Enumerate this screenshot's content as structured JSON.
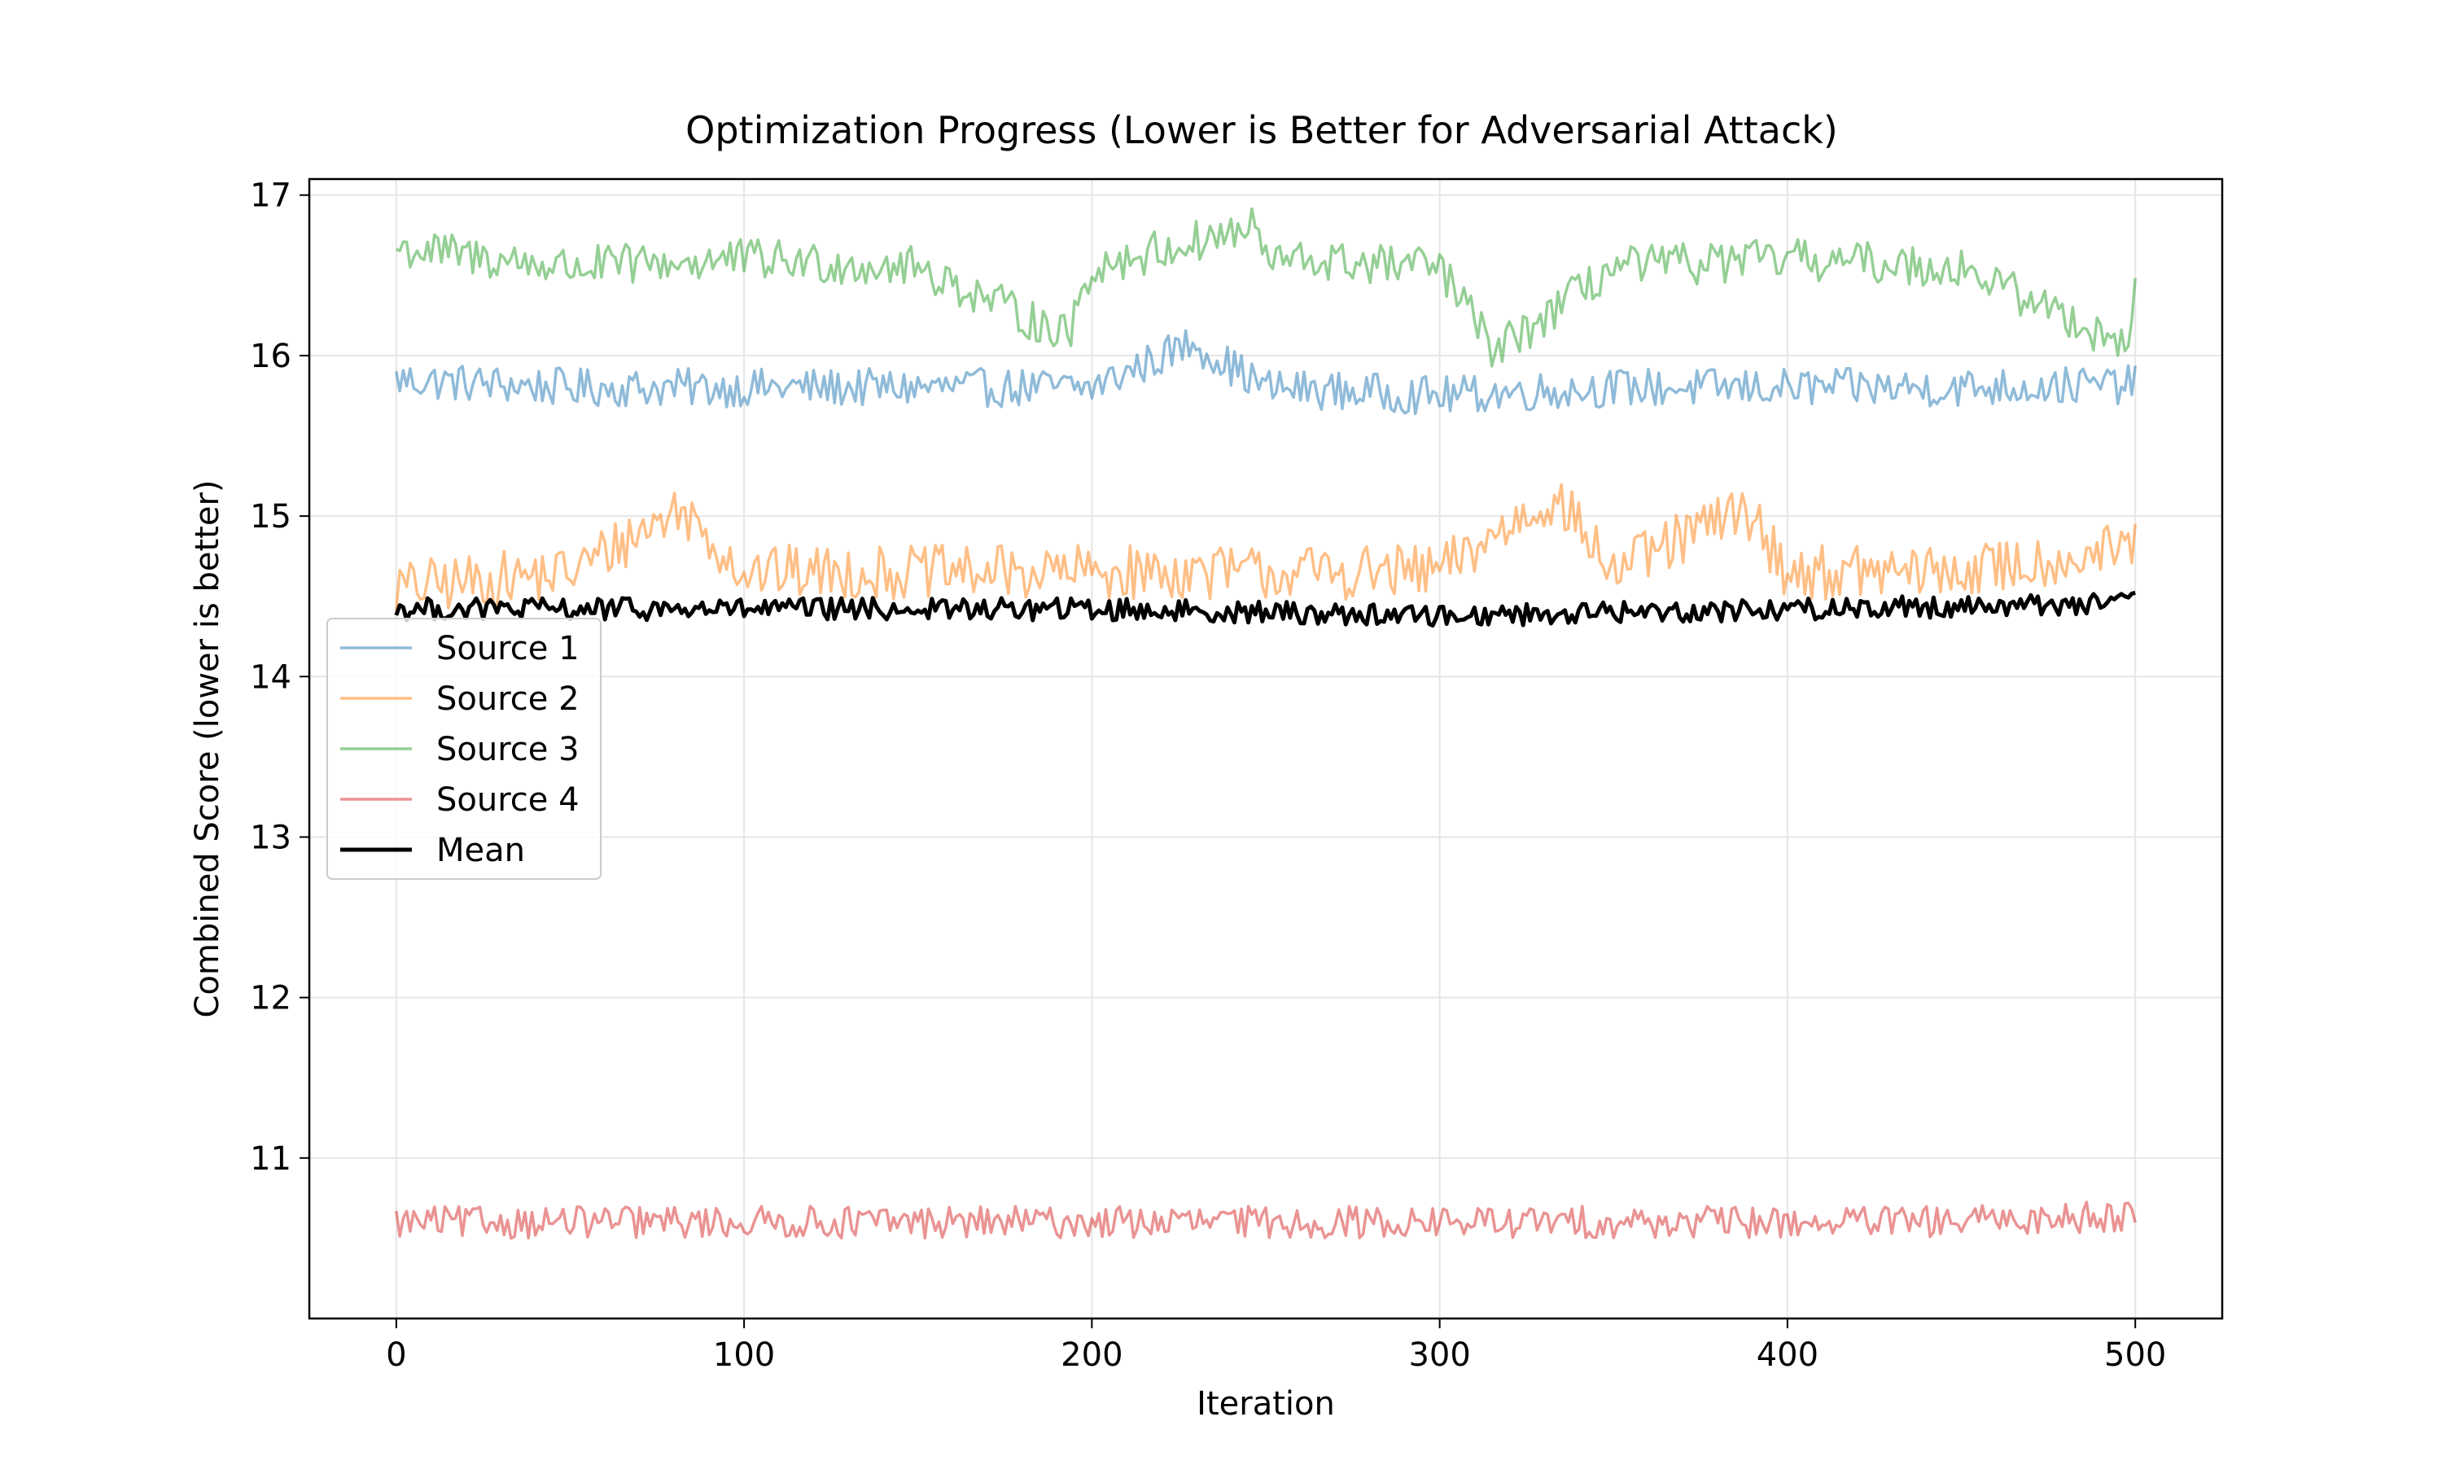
{
  "chart_data": {
    "type": "line",
    "title": "Optimization Progress (Lower is Better for Adversarial Attack)",
    "xlabel": "Iteration",
    "ylabel": "Combined Score (lower is better)",
    "xlim": [
      -25,
      525
    ],
    "ylim": [
      10.0,
      17.1
    ],
    "xticks": [
      0,
      100,
      200,
      300,
      400,
      500
    ],
    "yticks": [
      11,
      12,
      13,
      14,
      15,
      16,
      17
    ],
    "grid": true,
    "legend_position": "center-left",
    "legend": [
      {
        "label": "Source 1",
        "color": "#1f77b4",
        "alpha": 0.5,
        "width": 3.5
      },
      {
        "label": "Source 2",
        "color": "#ff7f0e",
        "alpha": 0.5,
        "width": 3.5
      },
      {
        "label": "Source 3",
        "color": "#2ca02c",
        "alpha": 0.5,
        "width": 3.5
      },
      {
        "label": "Source 4",
        "color": "#d62728",
        "alpha": 0.5,
        "width": 3.5
      },
      {
        "label": "Mean",
        "color": "#000000",
        "alpha": 1.0,
        "width": 5
      }
    ],
    "x": {
      "start": 0,
      "end": 500,
      "step": 1
    },
    "series": [
      {
        "name": "Source 1",
        "description": "Noisy series fluctuating about 15.8, range ~15.55-16.1",
        "keypoints": [
          [
            0,
            15.85
          ],
          [
            50,
            15.8
          ],
          [
            100,
            15.8
          ],
          [
            150,
            15.8
          ],
          [
            200,
            15.8
          ],
          [
            229,
            16.08
          ],
          [
            250,
            15.8
          ],
          [
            300,
            15.75
          ],
          [
            350,
            15.8
          ],
          [
            400,
            15.8
          ],
          [
            450,
            15.8
          ],
          [
            500,
            15.82
          ]
        ],
        "mean": 15.8,
        "amplitude": 0.12
      },
      {
        "name": "Source 2",
        "description": "Noisy series fluctuating about 14.65, range ~14.35-15.15",
        "keypoints": [
          [
            0,
            14.55
          ],
          [
            50,
            14.65
          ],
          [
            82,
            15.05
          ],
          [
            100,
            14.65
          ],
          [
            150,
            14.65
          ],
          [
            200,
            14.65
          ],
          [
            250,
            14.65
          ],
          [
            300,
            14.65
          ],
          [
            333,
            15.13
          ],
          [
            350,
            14.65
          ],
          [
            388,
            15.05
          ],
          [
            400,
            14.65
          ],
          [
            450,
            14.65
          ],
          [
            500,
            14.8
          ]
        ],
        "mean": 14.65,
        "amplitude": 0.17
      },
      {
        "name": "Source 3",
        "description": "Noisy series fluctuating about 16.55, range ~16.0-16.8",
        "keypoints": [
          [
            0,
            16.67
          ],
          [
            50,
            16.55
          ],
          [
            100,
            16.6
          ],
          [
            150,
            16.55
          ],
          [
            193,
            16.12
          ],
          [
            200,
            16.55
          ],
          [
            247,
            16.8
          ],
          [
            250,
            16.6
          ],
          [
            300,
            16.55
          ],
          [
            316,
            16.02
          ],
          [
            350,
            16.55
          ],
          [
            400,
            16.6
          ],
          [
            450,
            16.55
          ],
          [
            498,
            16.06
          ],
          [
            500,
            16.58
          ]
        ],
        "mean": 16.55,
        "amplitude": 0.13
      },
      {
        "name": "Source 4",
        "description": "Noisy series fluctuating about 10.6, range ~10.33-10.8",
        "keypoints": [
          [
            0,
            10.6
          ],
          [
            50,
            10.6
          ],
          [
            100,
            10.6
          ],
          [
            150,
            10.6
          ],
          [
            200,
            10.6
          ],
          [
            250,
            10.6
          ],
          [
            300,
            10.6
          ],
          [
            350,
            10.6
          ],
          [
            400,
            10.6
          ],
          [
            450,
            10.6
          ],
          [
            500,
            10.65
          ]
        ],
        "mean": 10.6,
        "amplitude": 0.1
      },
      {
        "name": "Mean",
        "description": "Mean of the four sources, ~14.42, range ~14.2-14.6",
        "keypoints": [
          [
            0,
            14.42
          ],
          [
            100,
            14.42
          ],
          [
            200,
            14.42
          ],
          [
            300,
            14.38
          ],
          [
            400,
            14.42
          ],
          [
            500,
            14.46
          ]
        ],
        "mean": 14.42,
        "amplitude": 0.07
      }
    ]
  }
}
